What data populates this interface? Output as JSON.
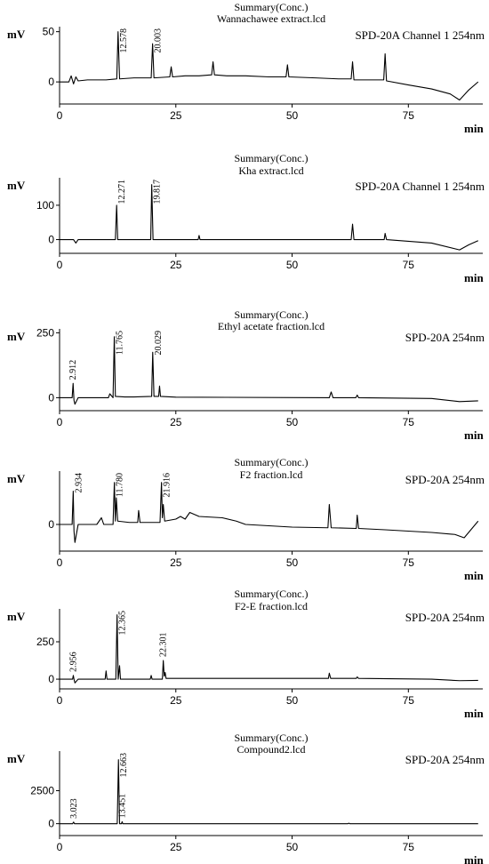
{
  "chart_data": [
    {
      "type": "line",
      "title": "Summary(Conc.)",
      "subtitle": "Wannachawee extract.lcd",
      "channel": "SPD-20A Channel 1 254nm",
      "ylabel": "mV",
      "xlabel": "min",
      "color": "#000000",
      "xlim": [
        0,
        91
      ],
      "xticks": [
        0,
        25,
        50,
        75
      ],
      "ylim": [
        -22,
        55
      ],
      "yticks": [
        0,
        50
      ],
      "x": [
        0,
        2,
        2.5,
        3,
        3.5,
        4,
        6,
        10,
        12.3,
        12.578,
        12.9,
        16,
        19.7,
        20.003,
        20.3,
        23.7,
        24,
        24.3,
        27,
        30,
        32.7,
        33,
        33.3,
        36,
        40,
        45,
        48.7,
        49,
        49.3,
        55,
        60,
        62.7,
        63,
        63.3,
        66,
        69.7,
        70,
        70.3,
        75,
        80,
        84,
        86,
        88,
        90
      ],
      "values": [
        0,
        0,
        6,
        -2,
        5,
        1,
        2,
        2,
        3,
        50,
        3,
        4,
        4,
        38,
        4,
        5,
        15,
        5,
        6,
        6,
        7,
        20,
        7,
        6,
        6,
        5,
        5,
        17,
        5,
        4,
        3,
        3,
        20,
        2,
        2,
        2,
        28,
        1,
        -3,
        -7,
        -12,
        -18,
        -8,
        0
      ],
      "annotations": [
        {
          "x": 12.578,
          "text": "12.578"
        },
        {
          "x": 20.003,
          "text": "20.003"
        }
      ]
    },
    {
      "type": "line",
      "title": "Summary(Conc.)",
      "subtitle": "Kha extract.lcd",
      "channel": "SPD-20A Channel 1 254nm",
      "ylabel": "mV",
      "xlabel": "min",
      "color": "#000000",
      "xlim": [
        0,
        91
      ],
      "xticks": [
        0,
        25,
        50,
        75
      ],
      "ylim": [
        -40,
        180
      ],
      "yticks": [
        0,
        100
      ],
      "x": [
        0,
        3,
        3.5,
        4,
        6,
        12,
        12.271,
        12.5,
        19.6,
        19.817,
        20.1,
        29.8,
        30,
        30.2,
        45,
        62.7,
        63,
        63.3,
        69.8,
        70,
        70.3,
        80,
        86,
        88,
        90
      ],
      "values": [
        0,
        0,
        -10,
        0,
        0,
        0,
        100,
        0,
        0,
        160,
        0,
        0,
        12,
        0,
        0,
        0,
        45,
        0,
        0,
        18,
        0,
        -10,
        -30,
        -15,
        -3
      ],
      "annotations": [
        {
          "x": 12.271,
          "text": "12.271"
        },
        {
          "x": 19.817,
          "text": "19.817"
        }
      ]
    },
    {
      "type": "line",
      "title": "Summary(Conc.)",
      "subtitle": "Ethyl acetate fraction.lcd",
      "channel": "SPD-20A 254nm",
      "ylabel": "mV",
      "xlabel": "min",
      "color": "#000000",
      "xlim": [
        0,
        91
      ],
      "xticks": [
        0,
        25,
        50,
        75
      ],
      "ylim": [
        -50,
        265
      ],
      "yticks": [
        0,
        250
      ],
      "x": [
        0,
        2.7,
        2.912,
        3.1,
        3.3,
        4,
        8,
        10.5,
        10.8,
        11.5,
        11.765,
        12,
        14,
        16,
        19.8,
        20.029,
        20.3,
        21.3,
        21.5,
        21.7,
        25,
        58,
        58.4,
        58.8,
        63.7,
        64,
        64.3,
        80,
        86,
        90
      ],
      "values": [
        0,
        0,
        55,
        -10,
        -25,
        0,
        0,
        0,
        15,
        0,
        235,
        5,
        3,
        3,
        5,
        175,
        5,
        5,
        45,
        5,
        2,
        0,
        22,
        0,
        0,
        10,
        0,
        -3,
        -15,
        -12
      ],
      "annotations": [
        {
          "x": 2.912,
          "text": "2.912"
        },
        {
          "x": 11.765,
          "text": "11.765"
        },
        {
          "x": 20.029,
          "text": "20.029"
        }
      ]
    },
    {
      "type": "line",
      "title": "Summary(Conc.)",
      "subtitle": "F2 fraction.lcd",
      "channel": "SPD-20A 254nm",
      "ylabel": "mV",
      "xlabel": "min",
      "color": "#000000",
      "xlim": [
        0,
        91
      ],
      "xticks": [
        0,
        25,
        50,
        75
      ],
      "ylim": [
        -40,
        80
      ],
      "yticks": [
        0
      ],
      "x": [
        0,
        2.7,
        2.934,
        3.1,
        3.3,
        4,
        8,
        9,
        9.5,
        11.5,
        11.78,
        12,
        12.2,
        12.5,
        15,
        16.8,
        17,
        17.3,
        21.6,
        21.916,
        22.1,
        22.3,
        22.6,
        25,
        26,
        27,
        28,
        30,
        35,
        38,
        40,
        45,
        50,
        57.7,
        58,
        58.4,
        63.8,
        64,
        64.3,
        70,
        80,
        85,
        87,
        90
      ],
      "values": [
        0,
        0,
        50,
        -10,
        -27,
        0,
        0,
        10,
        0,
        0,
        63,
        5,
        40,
        5,
        3,
        3,
        21,
        3,
        3,
        63,
        10,
        30,
        5,
        8,
        12,
        8,
        18,
        12,
        10,
        5,
        0,
        -2,
        -4,
        -5,
        30,
        -5,
        -6,
        14,
        -6,
        -8,
        -12,
        -15,
        -20,
        5
      ],
      "annotations": [
        {
          "x": 2.934,
          "text": "2.934"
        },
        {
          "x": 11.78,
          "text": "11.780"
        },
        {
          "x": 21.916,
          "text": "21.916"
        }
      ]
    },
    {
      "type": "line",
      "title": "Summary(Conc.)",
      "subtitle": "F2-E fraction.lcd",
      "channel": "SPD-20A 254nm",
      "ylabel": "mV",
      "xlabel": "min",
      "color": "#000000",
      "xlim": [
        0,
        91
      ],
      "xticks": [
        0,
        25,
        50,
        75
      ],
      "ylim": [
        -65,
        470
      ],
      "yticks": [
        0,
        250
      ],
      "x": [
        0,
        2.8,
        2.956,
        3.1,
        3.3,
        4,
        9.8,
        10,
        10.2,
        12.1,
        12.365,
        12.6,
        12.9,
        13.1,
        13.3,
        19.5,
        19.7,
        19.9,
        22.1,
        22.301,
        22.5,
        22.7,
        22.9,
        30,
        57.8,
        58,
        58.3,
        63.8,
        64,
        64.3,
        80,
        86,
        90
      ],
      "values": [
        0,
        0,
        25,
        0,
        -25,
        0,
        0,
        55,
        0,
        0,
        430,
        0,
        90,
        0,
        0,
        0,
        25,
        0,
        0,
        125,
        20,
        45,
        5,
        5,
        5,
        40,
        5,
        5,
        15,
        5,
        0,
        -10,
        -8
      ],
      "annotations": [
        {
          "x": 2.956,
          "text": "2.956"
        },
        {
          "x": 12.365,
          "text": "12.365"
        },
        {
          "x": 22.301,
          "text": "22.301"
        }
      ]
    },
    {
      "type": "line",
      "title": "Summary(Conc.)",
      "subtitle": "Compound2.lcd",
      "channel": "SPD-20A 254nm",
      "ylabel": "mV",
      "xlabel": "min",
      "color": "#000000",
      "xlim": [
        0,
        91
      ],
      "xticks": [
        0,
        25,
        50,
        75
      ],
      "ylim": [
        -900,
        5500
      ],
      "yticks": [
        0,
        2500
      ],
      "x": [
        0,
        2.8,
        3.023,
        3.2,
        12.4,
        12.663,
        12.9,
        13.3,
        13.451,
        13.6,
        62,
        62.2,
        62.4,
        90
      ],
      "values": [
        0,
        0,
        120,
        0,
        0,
        4850,
        0,
        0,
        150,
        0,
        0,
        40,
        0,
        0
      ],
      "annotations": [
        {
          "x": 3.023,
          "text": "3.023"
        },
        {
          "x": 12.663,
          "text": "12.663"
        },
        {
          "x": 13.451,
          "text": "13.451"
        }
      ]
    }
  ]
}
